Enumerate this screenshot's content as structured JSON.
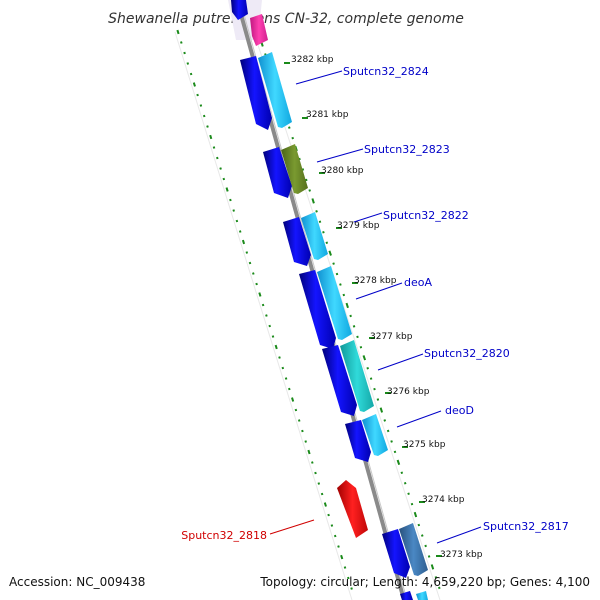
{
  "title": "Shewanella putrefaciens CN-32, complete genome",
  "footer": {
    "accession": "Accession: NC_009438",
    "topology": "Topology: circular; Length: 4,659,220 bp; Genes: 4,100"
  },
  "colors": {
    "backbone": "#888888",
    "forward_gene": "#0a0ae8",
    "reverse_gene_light_blue": "#1ec8f5",
    "reverse_gene_olive": "#6e8c28",
    "reverse_gene_teal": "#20c8c8",
    "reverse_gene_steelblue": "#3c78b4",
    "reverse_gene_pink": "#f028a0",
    "red_gene": "#e81010",
    "label_blue": "#0000c8",
    "label_red": "#d00000",
    "gc_ticks": "#1a8a1a"
  },
  "ticks": [
    "3282 kbp",
    "3281 kbp",
    "3280 kbp",
    "3279 kbp",
    "3278 kbp",
    "3277 kbp",
    "3276 kbp",
    "3275 kbp",
    "3274 kbp",
    "3273 kbp"
  ],
  "gene_labels": [
    {
      "name": "Sputcn32_2824",
      "color": "blue"
    },
    {
      "name": "Sputcn32_2823",
      "color": "blue"
    },
    {
      "name": "Sputcn32_2822",
      "color": "blue"
    },
    {
      "name": "deoA",
      "color": "blue"
    },
    {
      "name": "Sputcn32_2820",
      "color": "blue"
    },
    {
      "name": "deoD",
      "color": "blue"
    },
    {
      "name": "Sputcn32_2817",
      "color": "blue"
    },
    {
      "name": "Sputcn32_2818",
      "color": "red"
    }
  ]
}
